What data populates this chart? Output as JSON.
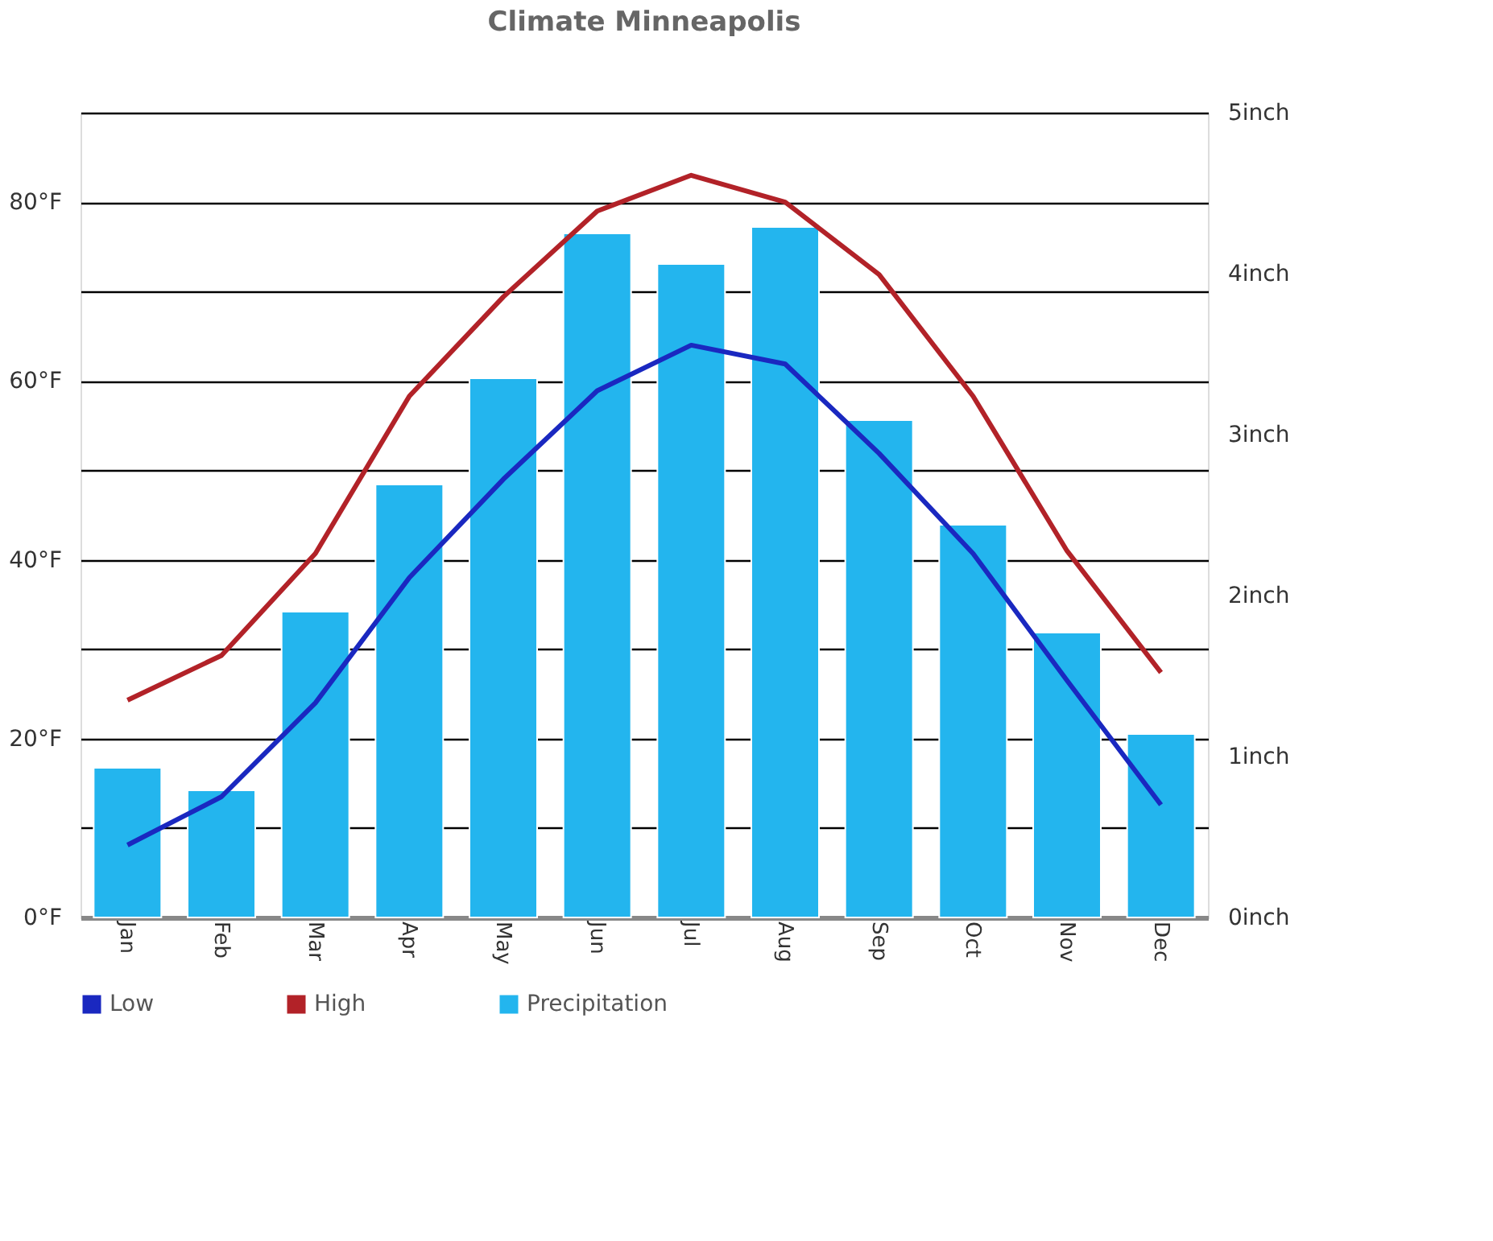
{
  "chart_data": {
    "type": "bar",
    "title": "Climate Minneapolis",
    "categories": [
      "Jan",
      "Feb",
      "Mar",
      "Apr",
      "May",
      "Jun",
      "Jul",
      "Aug",
      "Sep",
      "Oct",
      "Nov",
      "Dec"
    ],
    "series": [
      {
        "name": "Low",
        "type": "line",
        "color": "#1a28c0",
        "values": [
          8.1,
          13.5,
          24,
          38,
          49,
          58.9,
          64,
          61.9,
          51.9,
          40.7,
          26.5,
          12.6
        ]
      },
      {
        "name": "High",
        "type": "line",
        "color": "#b22228",
        "values": [
          24.3,
          29.3,
          40.7,
          58.3,
          69.4,
          79,
          83,
          80,
          71.9,
          58.3,
          41,
          27.4
        ]
      },
      {
        "name": "Precipitation",
        "axis": "y2",
        "color": "#23b5ee",
        "values": [
          0.93,
          0.79,
          1.9,
          2.69,
          3.35,
          4.25,
          4.06,
          4.29,
          3.09,
          2.44,
          1.77,
          1.14
        ]
      }
    ],
    "ylim": [
      0,
      90
    ],
    "yticks": [
      {
        "value": 0,
        "label": "0°F"
      },
      {
        "value": 10,
        "label": null
      },
      {
        "value": 20,
        "label": "20°F"
      },
      {
        "value": 30,
        "label": null
      },
      {
        "value": 40,
        "label": "40°F"
      },
      {
        "value": 50,
        "label": null
      },
      {
        "value": 60,
        "label": "60°F"
      },
      {
        "value": 70,
        "label": null
      },
      {
        "value": 80,
        "label": "80°F"
      },
      {
        "value": 90,
        "label": null
      }
    ],
    "y2lim": [
      0,
      5
    ],
    "y2ticks": [
      {
        "value": 0,
        "label": "0inch"
      },
      {
        "value": 1,
        "label": "1inch"
      },
      {
        "value": 2,
        "label": "2inch"
      },
      {
        "value": 3,
        "label": "3inch"
      },
      {
        "value": 4,
        "label": "4inch"
      },
      {
        "value": 5,
        "label": "5inch"
      }
    ],
    "grid": "y",
    "legend": "bottom"
  }
}
